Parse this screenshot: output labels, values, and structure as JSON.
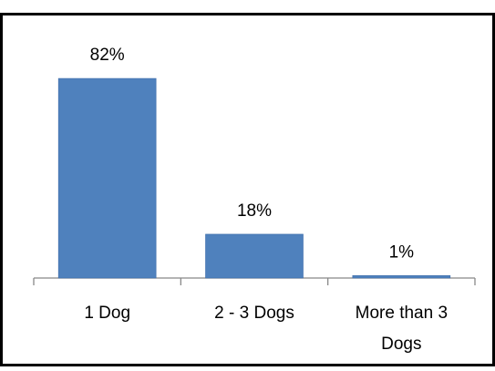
{
  "chart_data": {
    "type": "bar",
    "categories": [
      "1 Dog",
      "2 - 3 Dogs",
      "More than 3 Dogs"
    ],
    "category_label_lines": [
      [
        "1 Dog"
      ],
      [
        "2 - 3 Dogs"
      ],
      [
        "More than 3",
        "Dogs"
      ]
    ],
    "values": [
      82,
      18,
      1
    ],
    "data_labels": [
      "82%",
      "18%",
      "1%"
    ],
    "value_unit": "%",
    "ylim": [
      0,
      100
    ],
    "grid": false,
    "legend": "none",
    "title": "",
    "xlabel": "",
    "ylabel": "",
    "colors": {
      "bar": "#4f81bd",
      "bar_edge": "#3b6aa8",
      "axis": "#888888",
      "border": "#000000"
    }
  }
}
